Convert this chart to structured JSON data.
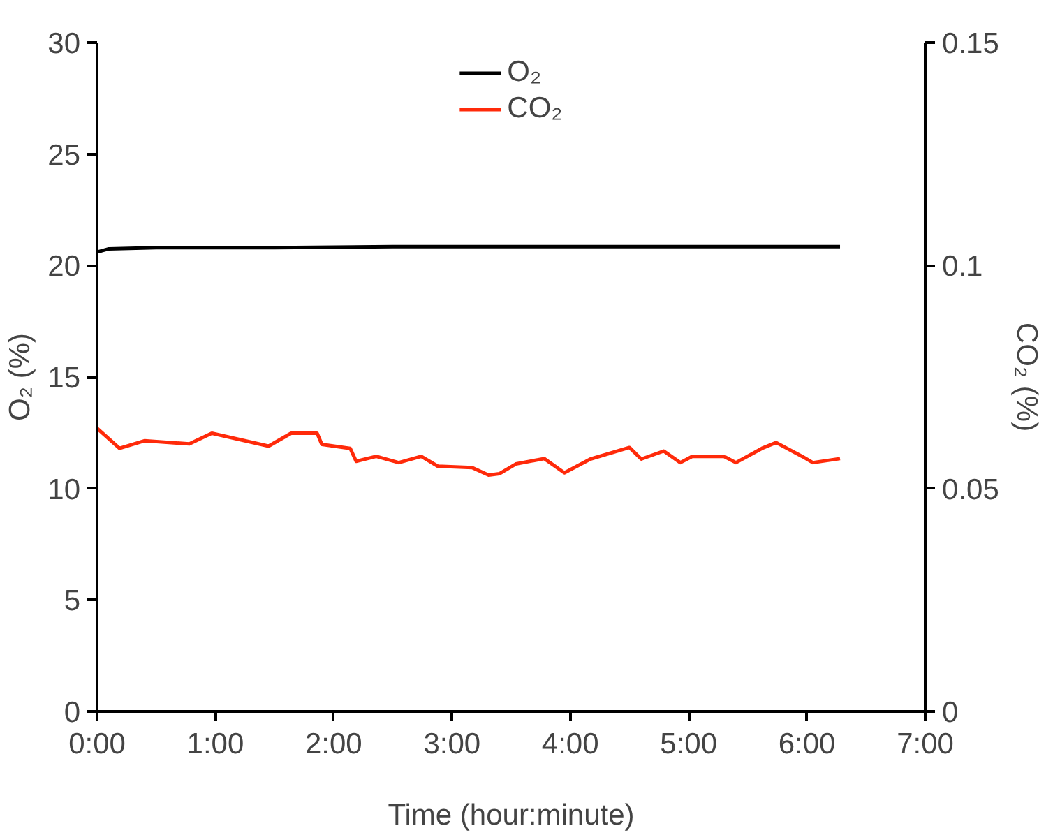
{
  "chart_data": {
    "type": "line",
    "xlabel": "Time (hour:minute)",
    "ylabel": "O₂ (%)",
    "y2label": "CO₂ (%)",
    "xlim": [
      0,
      7
    ],
    "xticks": [
      {
        "value": 0,
        "label": "0:00"
      },
      {
        "value": 1,
        "label": "1:00"
      },
      {
        "value": 2,
        "label": "2:00"
      },
      {
        "value": 3,
        "label": "3:00"
      },
      {
        "value": 4,
        "label": "4:00"
      },
      {
        "value": 5,
        "label": "5:00"
      },
      {
        "value": 6,
        "label": "6:00"
      },
      {
        "value": 7,
        "label": "7:00"
      }
    ],
    "ylim": [
      0,
      30
    ],
    "yticks": [
      0,
      5,
      10,
      15,
      20,
      25,
      30
    ],
    "y2lim": [
      0,
      0.15
    ],
    "y2ticks": [
      0,
      0.05,
      0.1,
      0.15
    ],
    "legend": "top",
    "grid": false,
    "series": [
      {
        "name": "O₂",
        "color": "#000000",
        "x": [
          0,
          0.1,
          0.5,
          1.5,
          2.5,
          3.5,
          4.5,
          5.5,
          6.28
        ],
        "values": [
          20.6,
          20.75,
          20.8,
          20.8,
          20.85,
          20.85,
          20.85,
          20.85,
          20.85
        ]
      },
      {
        "name": "CO₂",
        "color": "#ff2a0a",
        "axis": "y2",
        "x": [
          0,
          0.19,
          0.4,
          0.78,
          0.97,
          1.45,
          1.64,
          1.86,
          1.9,
          2.14,
          2.19,
          2.36,
          2.55,
          2.74,
          2.88,
          3.17,
          3.31,
          3.4,
          3.54,
          3.78,
          3.95,
          4.17,
          4.5,
          4.6,
          4.79,
          4.93,
          5.03,
          5.3,
          5.4,
          5.62,
          5.74,
          5.96,
          6.05,
          6.28
        ],
        "values": [
          0.0635,
          0.059,
          0.0607,
          0.06,
          0.0624,
          0.0595,
          0.0624,
          0.0624,
          0.0599,
          0.059,
          0.0561,
          0.0572,
          0.0558,
          0.0572,
          0.055,
          0.0547,
          0.053,
          0.0533,
          0.0555,
          0.0567,
          0.0535,
          0.0566,
          0.0592,
          0.0566,
          0.0584,
          0.0558,
          0.0572,
          0.0572,
          0.0558,
          0.059,
          0.0603,
          0.0572,
          0.0558,
          0.0567
        ]
      }
    ]
  }
}
